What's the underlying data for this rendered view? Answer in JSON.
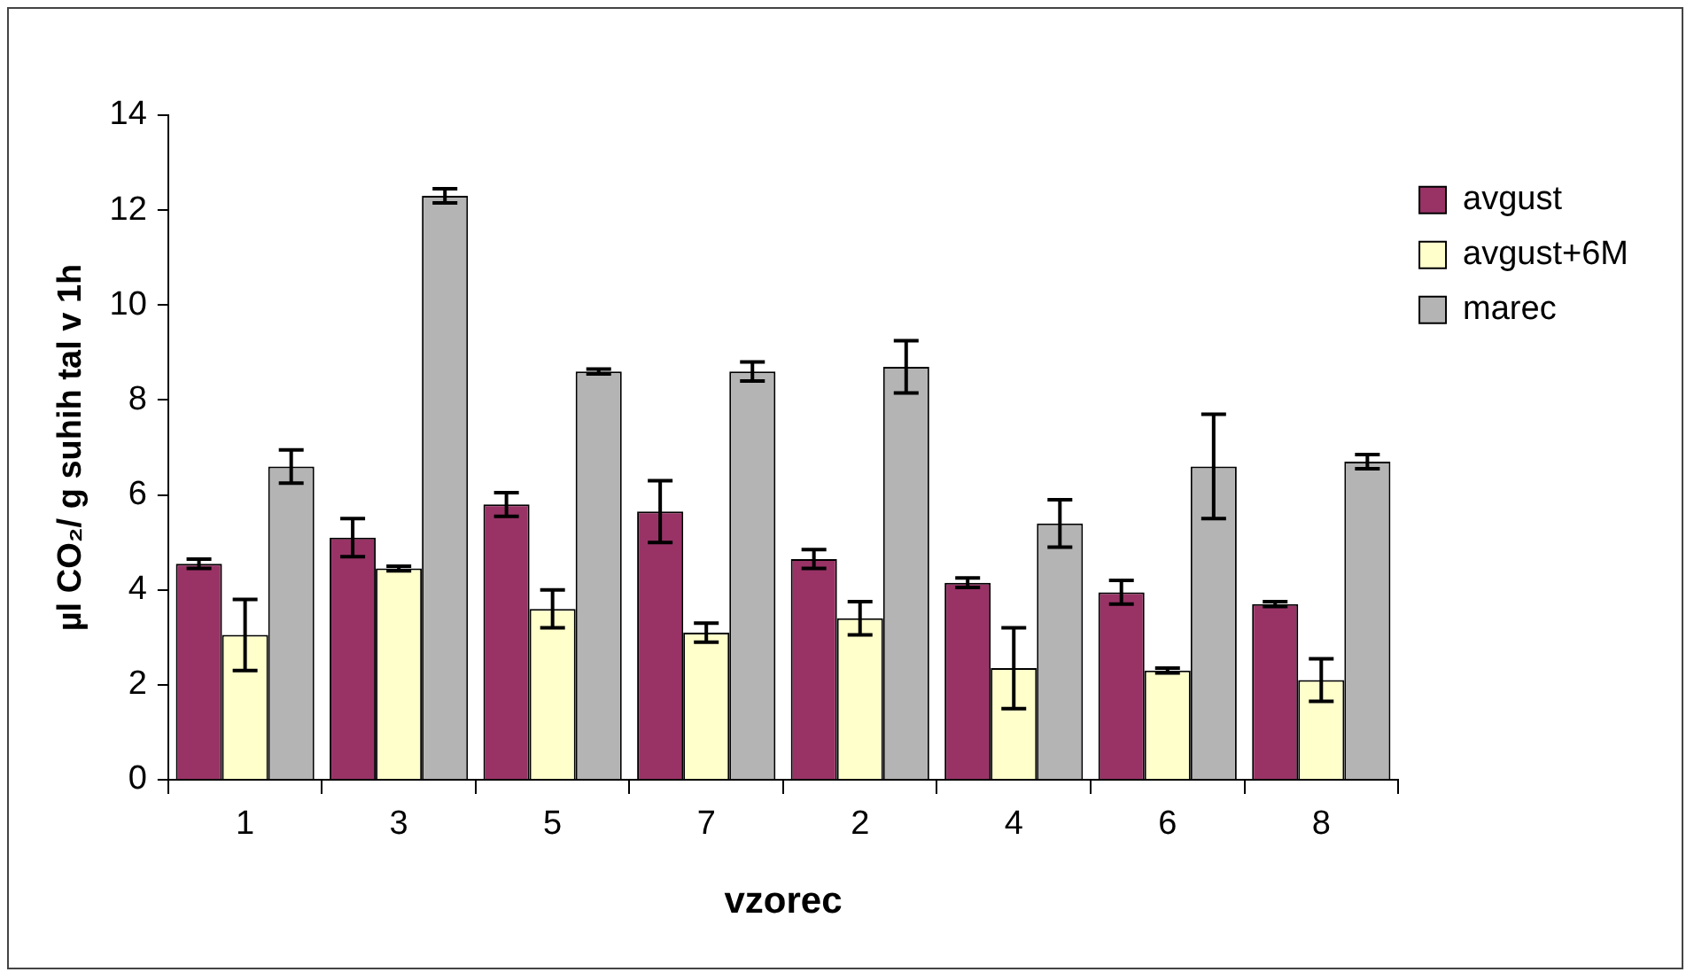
{
  "chart_data": {
    "type": "bar",
    "xlabel": "vzorec",
    "ylabel": "µl CO₂/ g suhih tal v 1h",
    "categories": [
      "1",
      "3",
      "5",
      "7",
      "2",
      "4",
      "6",
      "8"
    ],
    "series": [
      {
        "name": "avgust",
        "color": "#993366",
        "values": [
          4.55,
          5.1,
          5.8,
          5.65,
          4.65,
          4.15,
          3.95,
          3.7
        ],
        "errors": [
          0.1,
          0.4,
          0.25,
          0.65,
          0.2,
          0.1,
          0.25,
          0.05
        ]
      },
      {
        "name": "avgust+6M",
        "color": "#ffffcc",
        "values": [
          3.05,
          4.45,
          3.6,
          3.1,
          3.4,
          2.35,
          2.3,
          2.1
        ],
        "errors": [
          0.75,
          0.05,
          0.4,
          0.2,
          0.35,
          0.85,
          0.05,
          0.45
        ]
      },
      {
        "name": "marec",
        "color": "#b4b4b4",
        "values": [
          6.6,
          12.3,
          8.6,
          8.6,
          8.7,
          5.4,
          6.6,
          6.7
        ],
        "errors": [
          0.35,
          0.15,
          0.05,
          0.2,
          0.55,
          0.5,
          1.1,
          0.15
        ]
      }
    ],
    "ylim": [
      0,
      14
    ],
    "yticks": [
      0,
      2,
      4,
      6,
      8,
      10,
      12,
      14
    ],
    "grid": false,
    "legend": "top right"
  }
}
